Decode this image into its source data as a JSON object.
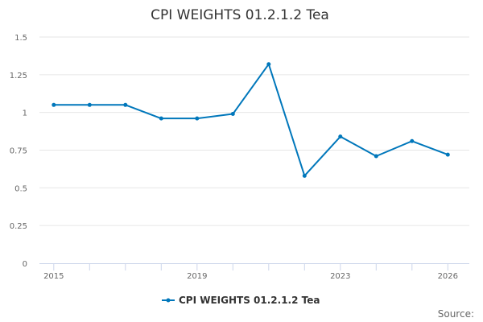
{
  "chart_data": {
    "type": "line",
    "title": "CPI WEIGHTS 01.2.1.2 Tea",
    "xlabel": "",
    "ylabel": "",
    "x": [
      2015,
      2016,
      2017,
      2018,
      2019,
      2020,
      2021,
      2022,
      2023,
      2024,
      2025,
      2026
    ],
    "x_tick_labels": [
      "2015",
      "2019",
      "2023",
      "2026"
    ],
    "y_tick_labels": [
      "0",
      "0.25",
      "0.5",
      "0.75",
      "1",
      "1.25",
      "1.5"
    ],
    "ylim": [
      0,
      1.5
    ],
    "grid": true,
    "legend_position": "bottom",
    "series": [
      {
        "name": "CPI WEIGHTS 01.2.1.2 Tea",
        "color": "#0077bb",
        "values": [
          1.05,
          1.05,
          1.05,
          0.96,
          0.96,
          0.99,
          1.32,
          0.58,
          0.84,
          0.71,
          0.81,
          0.72
        ]
      }
    ],
    "credit": "Source:"
  }
}
